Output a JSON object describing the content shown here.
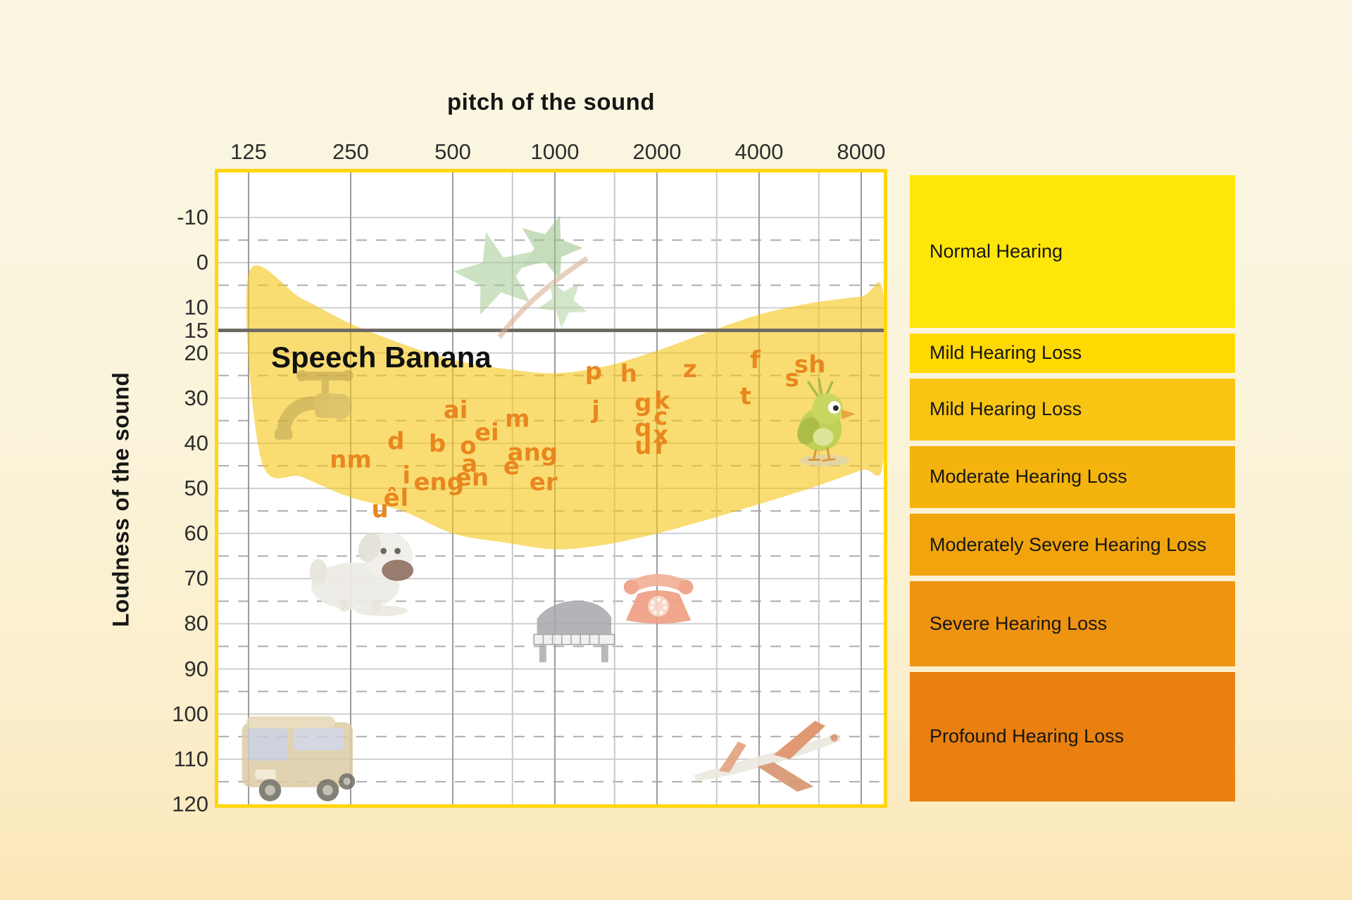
{
  "chart_data": {
    "type": "area",
    "title": "pitch of the sound",
    "ylabel": "Loudness of the sound",
    "area_label": "Speech Banana",
    "x_ticks": [
      125,
      250,
      500,
      1000,
      2000,
      4000,
      8000
    ],
    "x_minor_gridlines_hz": [
      750,
      1500,
      3000,
      6000
    ],
    "y_tick_labels": [
      -10,
      0,
      10,
      15,
      20,
      30,
      40,
      50,
      60,
      70,
      80,
      90,
      100,
      110,
      120
    ],
    "y_solid_gridlines_db": [
      -10,
      0,
      10,
      20,
      30,
      40,
      50,
      60,
      70,
      80,
      90,
      100,
      110
    ],
    "y_dashed_gridlines_db": [
      -5,
      5,
      25,
      35,
      45,
      55,
      65,
      75,
      85,
      95,
      105,
      115
    ],
    "ylim": [
      -20,
      120
    ],
    "xlim_hz": [
      90,
      9400
    ],
    "threshold_db": 15,
    "grid": "on",
    "colors": {
      "banana_fill": "#F5C616",
      "banana_fill_opacity": 0.6,
      "phoneme": "#E8871E",
      "threshold_line": "#6E6A64",
      "plot_border": "#FFD60A",
      "grid_major_h": "#CFCFCF",
      "grid_dashed": "#ADADAD",
      "grid_octave_v": "#9C9C9C",
      "grid_minor_v": "#C9C9C9"
    },
    "banana_outline_top": [
      [
        125,
        2.5
      ],
      [
        180,
        8
      ],
      [
        250,
        13.5
      ],
      [
        355,
        18
      ],
      [
        500,
        21.5
      ],
      [
        710,
        23.5
      ],
      [
        1000,
        24.5
      ],
      [
        1400,
        23
      ],
      [
        2000,
        19.5
      ],
      [
        2800,
        15.5
      ],
      [
        4000,
        11.5
      ],
      [
        5650,
        9
      ],
      [
        8000,
        7.5
      ],
      [
        9300,
        7
      ]
    ],
    "banana_outline_bottom": [
      [
        9300,
        44
      ],
      [
        8000,
        46
      ],
      [
        5650,
        50
      ],
      [
        4000,
        53.5
      ],
      [
        2800,
        57
      ],
      [
        2000,
        60
      ],
      [
        1400,
        62.5
      ],
      [
        1000,
        63.5
      ],
      [
        710,
        62
      ],
      [
        500,
        60
      ],
      [
        355,
        55
      ],
      [
        250,
        52
      ],
      [
        180,
        47.5
      ],
      [
        136,
        43.5
      ]
    ],
    "phonemes": [
      {
        "label": "p",
        "hz": 1300,
        "db": 24
      },
      {
        "label": "h",
        "hz": 1650,
        "db": 24.5
      },
      {
        "label": "z",
        "hz": 2500,
        "db": 23.5
      },
      {
        "label": "f",
        "hz": 3900,
        "db": 21.5
      },
      {
        "label": "s",
        "hz": 5000,
        "db": 25.5
      },
      {
        "label": "sh",
        "hz": 5650,
        "db": 22.5
      },
      {
        "label": "t",
        "hz": 3650,
        "db": 29.5
      },
      {
        "label": "j",
        "hz": 1320,
        "db": 32.5
      },
      {
        "label": "g",
        "hz": 1820,
        "db": 31
      },
      {
        "label": "k",
        "hz": 2070,
        "db": 30.5
      },
      {
        "label": "c",
        "hz": 2050,
        "db": 34
      },
      {
        "label": "q",
        "hz": 1820,
        "db": 36.5
      },
      {
        "label": "x",
        "hz": 2050,
        "db": 38
      },
      {
        "label": "u",
        "hz": 1820,
        "db": 40.5
      },
      {
        "label": "r",
        "hz": 2050,
        "db": 40.5
      },
      {
        "label": "ai",
        "hz": 510,
        "db": 32.5
      },
      {
        "label": "m",
        "hz": 775,
        "db": 34.5
      },
      {
        "label": "ei",
        "hz": 630,
        "db": 37.5
      },
      {
        "label": "d",
        "hz": 340,
        "db": 39.5
      },
      {
        "label": "b",
        "hz": 450,
        "db": 40
      },
      {
        "label": "o",
        "hz": 555,
        "db": 40.5
      },
      {
        "label": "ang",
        "hz": 860,
        "db": 42
      },
      {
        "label": "nm",
        "hz": 250,
        "db": 43.5
      },
      {
        "label": "a",
        "hz": 560,
        "db": 44.5
      },
      {
        "label": "e",
        "hz": 745,
        "db": 45
      },
      {
        "label": "i",
        "hz": 365,
        "db": 47
      },
      {
        "label": "eng",
        "hz": 455,
        "db": 48.5
      },
      {
        "label": "en",
        "hz": 570,
        "db": 47.5
      },
      {
        "label": "er",
        "hz": 925,
        "db": 48.5
      },
      {
        "label": "u",
        "hz": 305,
        "db": 54.5
      },
      {
        "label": "ê",
        "hz": 330,
        "db": 52
      },
      {
        "label": "l",
        "hz": 360,
        "db": 52
      }
    ],
    "sound_icons": [
      {
        "name": "leaves",
        "hz": 775,
        "db": 5.5
      },
      {
        "name": "faucet",
        "hz": 190,
        "db": 34
      },
      {
        "name": "dog",
        "hz": 258,
        "db": 67
      },
      {
        "name": "piano",
        "hz": 1140,
        "db": 81
      },
      {
        "name": "telephone",
        "hz": 2020,
        "db": 74
      },
      {
        "name": "bus",
        "hz": 175,
        "db": 110
      },
      {
        "name": "jet",
        "hz": 4240,
        "db": 110
      },
      {
        "name": "bird",
        "hz": 6060,
        "db": 35
      }
    ]
  },
  "legend": {
    "items": [
      {
        "label": "Normal Hearing",
        "color": "#FFE60A",
        "db_from": -20,
        "db_to": 15
      },
      {
        "label": "Mild Hearing Loss",
        "color": "#FFD900",
        "db_from": 15,
        "db_to": 25
      },
      {
        "label": "Mild Hearing Loss",
        "color": "#F8C513",
        "db_from": 25,
        "db_to": 40
      },
      {
        "label": "Moderate Hearing Loss",
        "color": "#F4B30D",
        "db_from": 40,
        "db_to": 55
      },
      {
        "label": "Moderately Severe Hearing Loss",
        "color": "#F1A40C",
        "db_from": 55,
        "db_to": 70
      },
      {
        "label": "Severe Hearing Loss",
        "color": "#EF9410",
        "db_from": 70,
        "db_to": 90
      },
      {
        "label": "Profound Hearing Loss",
        "color": "#E9800F",
        "db_from": 90,
        "db_to": 120
      }
    ]
  }
}
